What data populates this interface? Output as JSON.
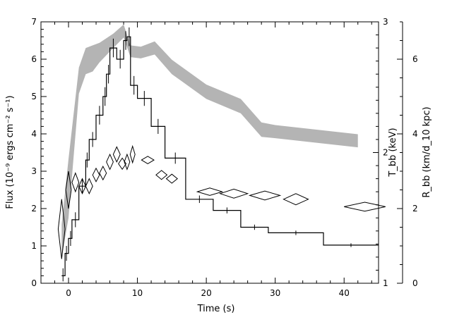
{
  "chart_data": {
    "type": "line",
    "xlabel": "Time (s)",
    "ylabel_left": "Flux (10⁻⁹ ergs cm⁻² s⁻¹)",
    "ylabel_right_inner": "T_bb (keV)",
    "ylabel_right_outer": "R_bb (km/d_10 kpc)",
    "xlim": [
      -4,
      45
    ],
    "ylim_left": [
      0,
      7
    ],
    "ylim_right_inner": [
      1,
      3
    ],
    "ylim_right_outer": [
      0,
      7
    ],
    "x_ticks": [
      "0",
      "10",
      "20",
      "30",
      "40"
    ],
    "y_ticks_left": [
      "0",
      "1",
      "2",
      "3",
      "4",
      "5",
      "6",
      "7"
    ],
    "y_ticks_right_inner": [
      "1",
      "2",
      "3"
    ],
    "y_ticks_right_outer": [
      "0",
      "2",
      "4",
      "6"
    ],
    "flux_steps": [
      {
        "x0": -1.0,
        "x1": -0.5,
        "y": 0.2
      },
      {
        "x0": -0.5,
        "x1": 0.0,
        "y": 0.8
      },
      {
        "x0": 0.0,
        "x1": 0.5,
        "y": 1.2
      },
      {
        "x0": 0.5,
        "x1": 1.5,
        "y": 1.7
      },
      {
        "x0": 1.5,
        "x1": 2.5,
        "y": 2.6
      },
      {
        "x0": 2.5,
        "x1": 3.0,
        "y": 3.3
      },
      {
        "x0": 3.0,
        "x1": 4.0,
        "y": 3.85
      },
      {
        "x0": 4.0,
        "x1": 5.0,
        "y": 4.5
      },
      {
        "x0": 5.0,
        "x1": 5.5,
        "y": 5.0
      },
      {
        "x0": 5.5,
        "x1": 6.0,
        "y": 5.6
      },
      {
        "x0": 6.0,
        "x1": 7.0,
        "y": 6.3
      },
      {
        "x0": 7.0,
        "x1": 8.0,
        "y": 6.0
      },
      {
        "x0": 8.0,
        "x1": 8.5,
        "y": 6.5
      },
      {
        "x0": 8.5,
        "x1": 9.0,
        "y": 6.6
      },
      {
        "x0": 9.0,
        "x1": 10.0,
        "y": 5.3
      },
      {
        "x0": 10.0,
        "x1": 12.0,
        "y": 4.95
      },
      {
        "x0": 12.0,
        "x1": 14.0,
        "y": 4.2
      },
      {
        "x0": 14.0,
        "x1": 17.0,
        "y": 3.35
      },
      {
        "x0": 17.0,
        "x1": 21.0,
        "y": 2.25
      },
      {
        "x0": 21.0,
        "x1": 25.0,
        "y": 1.95
      },
      {
        "x0": 25.0,
        "x1": 29.0,
        "y": 1.5
      },
      {
        "x0": 29.0,
        "x1": 37.0,
        "y": 1.35
      },
      {
        "x0": 37.0,
        "x1": 45.0,
        "y": 1.02
      }
    ],
    "flux_errors": [
      {
        "x": -0.8,
        "lo": 0.05,
        "hi": 0.4
      },
      {
        "x": -0.3,
        "lo": 0.6,
        "hi": 1.0
      },
      {
        "x": 0.3,
        "lo": 1.0,
        "hi": 1.4
      },
      {
        "x": 1.0,
        "lo": 1.5,
        "hi": 1.9
      },
      {
        "x": 2.0,
        "lo": 2.4,
        "hi": 2.8
      },
      {
        "x": 2.7,
        "lo": 3.1,
        "hi": 3.5
      },
      {
        "x": 3.5,
        "lo": 3.65,
        "hi": 4.05
      },
      {
        "x": 4.5,
        "lo": 4.25,
        "hi": 4.75
      },
      {
        "x": 5.3,
        "lo": 4.75,
        "hi": 5.25
      },
      {
        "x": 5.8,
        "lo": 5.35,
        "hi": 5.85
      },
      {
        "x": 6.5,
        "lo": 6.05,
        "hi": 6.55
      },
      {
        "x": 7.5,
        "lo": 5.75,
        "hi": 6.25
      },
      {
        "x": 8.3,
        "lo": 6.25,
        "hi": 6.75
      },
      {
        "x": 8.8,
        "lo": 6.35,
        "hi": 6.85
      },
      {
        "x": 9.5,
        "lo": 5.05,
        "hi": 5.55
      },
      {
        "x": 11.0,
        "lo": 4.75,
        "hi": 5.15
      },
      {
        "x": 13.0,
        "lo": 4.0,
        "hi": 4.4
      },
      {
        "x": 15.5,
        "lo": 3.2,
        "hi": 3.5
      },
      {
        "x": 19.0,
        "lo": 2.15,
        "hi": 2.35
      },
      {
        "x": 23.0,
        "lo": 1.87,
        "hi": 2.03
      },
      {
        "x": 27.0,
        "lo": 1.43,
        "hi": 1.57
      },
      {
        "x": 33.0,
        "lo": 1.29,
        "hi": 1.41
      },
      {
        "x": 41.0,
        "lo": 0.97,
        "hi": 1.07
      }
    ],
    "tbb_band": [
      {
        "x": -1.0,
        "lo": 1.2,
        "hi": 1.45
      },
      {
        "x": 0.0,
        "lo": 1.5,
        "hi": 1.95
      },
      {
        "x": 1.5,
        "lo": 2.45,
        "hi": 2.65
      },
      {
        "x": 2.5,
        "lo": 2.6,
        "hi": 2.8
      },
      {
        "x": 3.5,
        "lo": 2.62,
        "hi": 2.82
      },
      {
        "x": 4.5,
        "lo": 2.69,
        "hi": 2.84
      },
      {
        "x": 6.5,
        "lo": 2.8,
        "hi": 2.91
      },
      {
        "x": 8.0,
        "lo": 2.88,
        "hi": 2.98
      },
      {
        "x": 9.0,
        "lo": 2.73,
        "hi": 2.82
      },
      {
        "x": 10.5,
        "lo": 2.72,
        "hi": 2.81
      },
      {
        "x": 12.5,
        "lo": 2.75,
        "hi": 2.85
      },
      {
        "x": 15.0,
        "lo": 2.6,
        "hi": 2.71
      },
      {
        "x": 20.0,
        "lo": 2.41,
        "hi": 2.52
      },
      {
        "x": 25.0,
        "lo": 2.3,
        "hi": 2.41
      },
      {
        "x": 28.0,
        "lo": 2.12,
        "hi": 2.23
      },
      {
        "x": 30.0,
        "lo": 2.11,
        "hi": 2.21
      },
      {
        "x": 42.0,
        "lo": 2.04,
        "hi": 2.14
      }
    ],
    "rbb_diamonds": [
      {
        "x": -1.0,
        "y": 1.45,
        "dx": 0.5,
        "dy": 0.8
      },
      {
        "x": 0.0,
        "y": 2.5,
        "dx": 0.4,
        "dy": 0.5
      },
      {
        "x": 1.0,
        "y": 2.7,
        "dx": 0.5,
        "dy": 0.25
      },
      {
        "x": 2.0,
        "y": 2.6,
        "dx": 0.5,
        "dy": 0.2
      },
      {
        "x": 3.0,
        "y": 2.6,
        "dx": 0.5,
        "dy": 0.2
      },
      {
        "x": 4.0,
        "y": 2.9,
        "dx": 0.5,
        "dy": 0.18
      },
      {
        "x": 5.0,
        "y": 2.95,
        "dx": 0.5,
        "dy": 0.18
      },
      {
        "x": 6.0,
        "y": 3.25,
        "dx": 0.5,
        "dy": 0.2
      },
      {
        "x": 7.0,
        "y": 3.45,
        "dx": 0.5,
        "dy": 0.2
      },
      {
        "x": 7.8,
        "y": 3.2,
        "dx": 0.55,
        "dy": 0.15
      },
      {
        "x": 8.5,
        "y": 3.25,
        "dx": 0.4,
        "dy": 0.2
      },
      {
        "x": 9.3,
        "y": 3.45,
        "dx": 0.35,
        "dy": 0.22
      },
      {
        "x": 11.5,
        "y": 3.3,
        "dx": 0.9,
        "dy": 0.1
      },
      {
        "x": 13.5,
        "y": 2.9,
        "dx": 0.8,
        "dy": 0.12
      },
      {
        "x": 15.0,
        "y": 2.8,
        "dx": 0.8,
        "dy": 0.12
      },
      {
        "x": 20.5,
        "y": 2.45,
        "dx": 1.8,
        "dy": 0.1
      },
      {
        "x": 24.0,
        "y": 2.4,
        "dx": 2.0,
        "dy": 0.12
      },
      {
        "x": 28.5,
        "y": 2.35,
        "dx": 2.2,
        "dy": 0.12
      },
      {
        "x": 33.0,
        "y": 2.25,
        "dx": 1.8,
        "dy": 0.15
      },
      {
        "x": 43.0,
        "y": 2.05,
        "dx": 3.0,
        "dy": 0.12
      }
    ]
  }
}
